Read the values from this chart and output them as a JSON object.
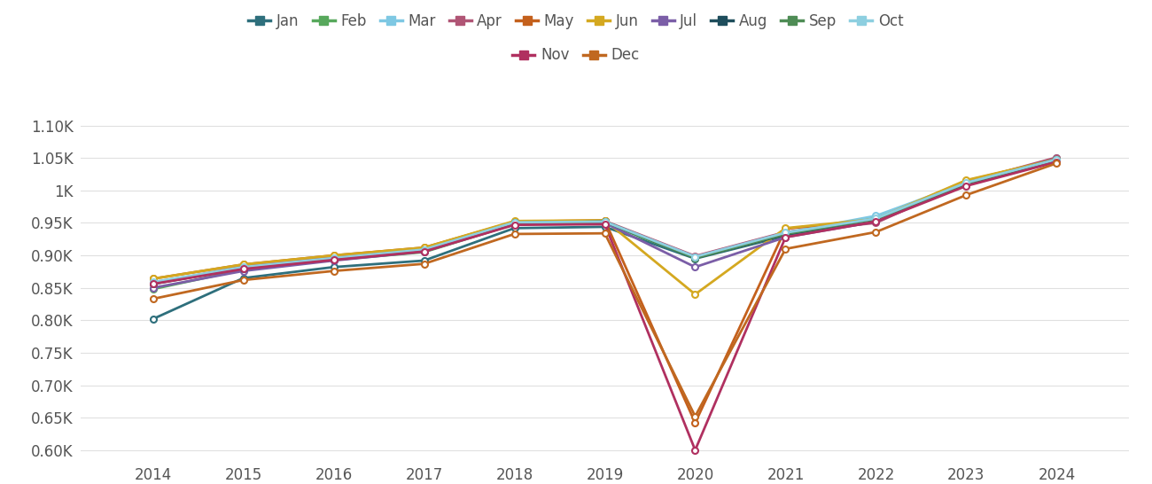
{
  "years": [
    2014,
    2015,
    2016,
    2017,
    2018,
    2019,
    2020,
    2021,
    2022,
    2023,
    2024
  ],
  "months": [
    "Jan",
    "Feb",
    "Mar",
    "Apr",
    "May",
    "Jun",
    "Jul",
    "Aug",
    "Sep",
    "Oct",
    "Nov",
    "Dec"
  ],
  "colors": {
    "Jan": "#2e6f7c",
    "Feb": "#57a85c",
    "Mar": "#7ec8e3",
    "Apr": "#b05575",
    "May": "#c4601c",
    "Jun": "#d4a820",
    "Jul": "#7b5ea7",
    "Aug": "#1e4d5c",
    "Sep": "#4e8c55",
    "Oct": "#8dcfe0",
    "Nov": "#b03060",
    "Dec": "#c06820"
  },
  "data": {
    "Jan": [
      802,
      865,
      882,
      892,
      942,
      944,
      895,
      930,
      957,
      1008,
      1048
    ],
    "Feb": [
      848,
      878,
      893,
      905,
      948,
      950,
      896,
      932,
      959,
      1010,
      1048
    ],
    "Mar": [
      856,
      882,
      896,
      908,
      950,
      952,
      898,
      935,
      961,
      1012,
      1050
    ],
    "Apr": [
      857,
      883,
      897,
      909,
      950,
      953,
      899,
      936,
      950,
      1013,
      1051
    ],
    "May": [
      864,
      886,
      900,
      912,
      952,
      954,
      642,
      941,
      955,
      1015,
      1048
    ],
    "Jun": [
      864,
      886,
      900,
      912,
      953,
      954,
      840,
      942,
      956,
      1016,
      1048
    ],
    "Jul": [
      850,
      876,
      892,
      906,
      948,
      950,
      882,
      928,
      952,
      1010,
      1046
    ],
    "Aug": [
      856,
      880,
      895,
      907,
      950,
      952,
      896,
      932,
      956,
      1010,
      1048
    ],
    "Sep": [
      857,
      881,
      895,
      908,
      950,
      952,
      896,
      933,
      956,
      1011,
      1048
    ],
    "Oct": [
      859,
      882,
      896,
      909,
      951,
      952,
      898,
      935,
      957,
      1012,
      1048
    ],
    "Nov": [
      856,
      879,
      893,
      906,
      947,
      948,
      600,
      928,
      952,
      1007,
      1044
    ],
    "Dec": [
      833,
      862,
      876,
      887,
      933,
      934,
      652,
      910,
      936,
      993,
      1042
    ]
  },
  "ylim": [
    585,
    1122
  ],
  "yticks": [
    600,
    650,
    700,
    750,
    800,
    850,
    900,
    950,
    1000,
    1050,
    1100
  ],
  "ytick_labels": [
    "0.60K",
    "0.65K",
    "0.70K",
    "0.75K",
    "0.80K",
    "0.85K",
    "0.90K",
    "0.95K",
    "1K",
    "1.05K",
    "1.10K"
  ],
  "background_color": "#ffffff",
  "grid_color": "#e0e0e0",
  "text_color": "#555555",
  "marker_size": 5,
  "line_width": 2
}
